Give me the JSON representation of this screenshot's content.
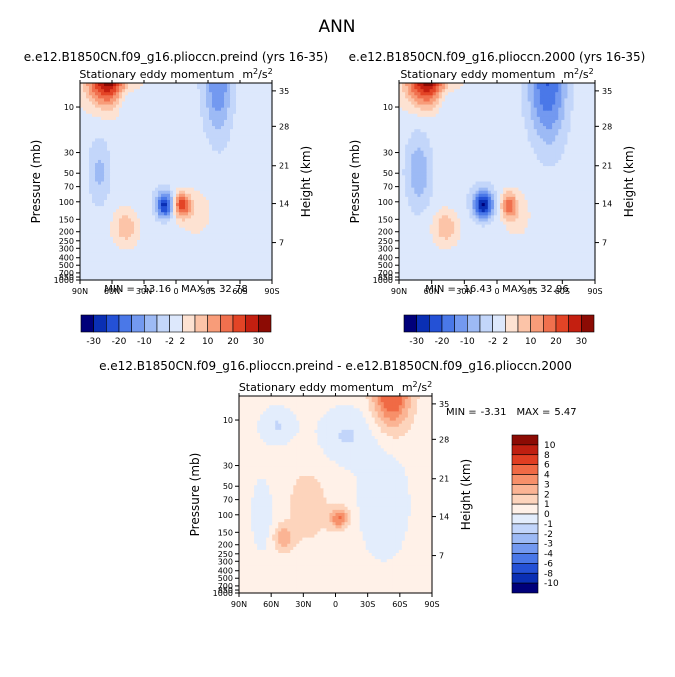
{
  "chart_data": {
    "type": "contour",
    "suptitle": "ANN",
    "colors": {
      "blue_dark": "#00007a",
      "red_dark": "#7a0000",
      "zero_band": "#f4f4f4"
    },
    "levels_top": [
      "-30",
      "-20",
      "-10",
      "-2",
      "2",
      "10",
      "20",
      "30"
    ],
    "levels_diff": [
      "10",
      "8",
      "6",
      "4",
      "3",
      "2",
      "1",
      "0",
      "-1",
      "-2",
      "-3",
      "-4",
      "-6",
      "-8",
      "-10"
    ],
    "lat_ticks": [
      "90N",
      "60N",
      "30N",
      "0",
      "30S",
      "60S",
      "90S"
    ],
    "pressure_ticks": [
      "10",
      "30",
      "50",
      "70",
      "100",
      "150",
      "200",
      "250",
      "300",
      "400",
      "500",
      "700",
      "850",
      "1000"
    ],
    "height_ticks": [
      "35",
      "28",
      "21",
      "14",
      "7"
    ],
    "panels": [
      {
        "id": "preind",
        "title": "e.e12.B1850CN.f09_g16.plioccn.preind (yrs 16-35)",
        "subtitle": "Stationary eddy momentum",
        "units_base": "m",
        "units_sup1": "2",
        "units_mid": "/s",
        "units_sup2": "2",
        "ylabel": "Pressure (mb)",
        "y2label": "Height (km)",
        "min_label": "MIN =",
        "min_value": "-13.16",
        "max_label": "MAX =",
        "max_value": "32.78"
      },
      {
        "id": "2000",
        "title": "e.e12.B1850CN.f09_g16.plioccn.2000 (yrs 16-35)",
        "subtitle": "Stationary eddy momentum",
        "units_base": "m",
        "units_sup1": "2",
        "units_mid": "/s",
        "units_sup2": "2",
        "ylabel": "Pressure (mb)",
        "y2label": "Height (km)",
        "min_label": "MIN =",
        "min_value": "-16.43",
        "max_label": "MAX =",
        "max_value": "32.96"
      },
      {
        "id": "diff",
        "title": "e.e12.B1850CN.f09_g16.plioccn.preind - e.e12.B1850CN.f09_g16.plioccn.2000",
        "subtitle": "Stationary eddy momentum",
        "units_base": "m",
        "units_sup1": "2",
        "units_mid": "/s",
        "units_sup2": "2",
        "ylabel": "Pressure (mb)",
        "y2label": "Height (km)",
        "min_label": "MIN =",
        "min_value": "-3.31",
        "max_label": "MAX =",
        "max_value": "5.47"
      }
    ]
  }
}
